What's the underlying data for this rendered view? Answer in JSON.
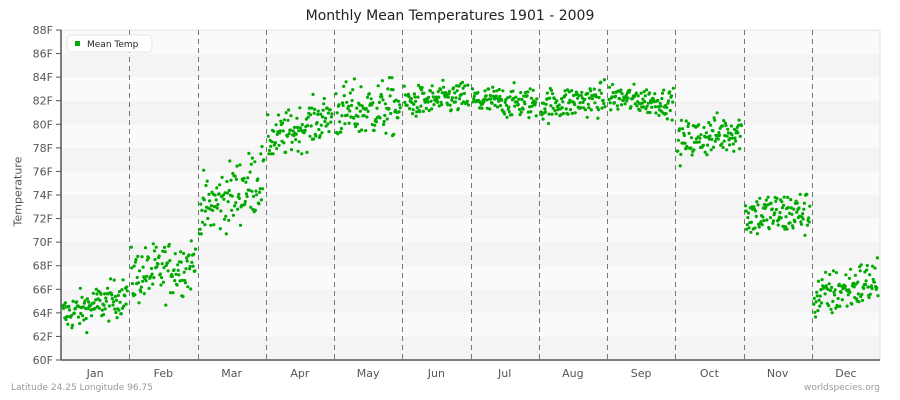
{
  "title": "Monthly Mean Temperatures 1901 - 2009",
  "footer": {
    "location": "Latitude 24.25 Longitude 96.75",
    "source": "worldspecies.org"
  },
  "legend": {
    "label": "Mean Temp",
    "color": "#00aa00"
  },
  "chart_data": {
    "type": "scatter",
    "title": "Monthly Mean Temperatures 1901 - 2009",
    "xlabel": "",
    "ylabel": "Temperature",
    "ylim": [
      60,
      88
    ],
    "yticks": [
      "60F",
      "62F",
      "64F",
      "66F",
      "68F",
      "70F",
      "72F",
      "74F",
      "76F",
      "78F",
      "80F",
      "82F",
      "84F",
      "86F",
      "88F"
    ],
    "categories": [
      "Jan",
      "Feb",
      "Mar",
      "Apr",
      "May",
      "Jun",
      "Jul",
      "Aug",
      "Sep",
      "Oct",
      "Nov",
      "Dec"
    ],
    "legend_position": "top-left",
    "grid": "horizontal bands + dashed vertical month separators",
    "series": [
      {
        "name": "Mean Temp",
        "color": "#00aa00",
        "years_per_month": 109,
        "month_stats": [
          {
            "month": "Jan",
            "start": 63.8,
            "end": 65.5,
            "mean": 64.3,
            "min": 61.7,
            "max": 66.9
          },
          {
            "month": "Feb",
            "start": 67.0,
            "end": 68.2,
            "mean": 67.8,
            "min": 63.6,
            "max": 71.3
          },
          {
            "month": "Mar",
            "start": 72.5,
            "end": 75.5,
            "mean": 74.2,
            "min": 70.7,
            "max": 79.7
          },
          {
            "month": "Apr",
            "start": 78.5,
            "end": 80.8,
            "mean": 80.2,
            "min": 77.5,
            "max": 83.6
          },
          {
            "month": "May",
            "start": 81.0,
            "end": 81.5,
            "mean": 81.3,
            "min": 78.5,
            "max": 86.2
          },
          {
            "month": "Jun",
            "start": 81.8,
            "end": 82.3,
            "mean": 81.9,
            "min": 80.0,
            "max": 84.3
          },
          {
            "month": "Jul",
            "start": 82.0,
            "end": 81.8,
            "mean": 81.8,
            "min": 79.5,
            "max": 83.8
          },
          {
            "month": "Aug",
            "start": 81.6,
            "end": 82.2,
            "mean": 81.9,
            "min": 79.3,
            "max": 83.8
          },
          {
            "month": "Sep",
            "start": 82.3,
            "end": 81.8,
            "mean": 81.7,
            "min": 79.7,
            "max": 83.5
          },
          {
            "month": "Oct",
            "start": 78.5,
            "end": 79.5,
            "mean": 78.8,
            "min": 76.4,
            "max": 81.8
          },
          {
            "month": "Nov",
            "start": 72.3,
            "end": 72.5,
            "mean": 72.1,
            "min": 69.0,
            "max": 75.2
          },
          {
            "month": "Dec",
            "start": 65.2,
            "end": 66.8,
            "mean": 65.6,
            "min": 62.4,
            "max": 68.9
          }
        ]
      }
    ]
  }
}
